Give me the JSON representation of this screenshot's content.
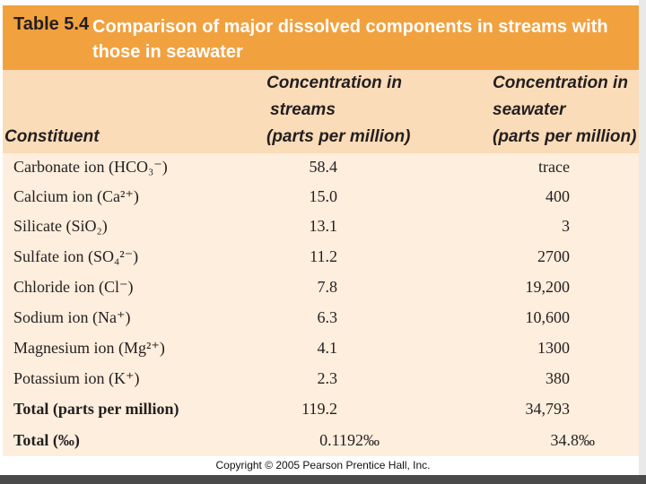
{
  "title": {
    "number": "Table 5.4",
    "text": "Comparison of major dissolved components in streams with those in seawater"
  },
  "colors": {
    "title_bar": "#f2a13f",
    "header_band": "#fbdcb8",
    "body_band": "#fdeedd",
    "bottom_bar": "#4a4a4a"
  },
  "columns": {
    "constituent": "Constituent",
    "streams": [
      "Concentration in",
      "streams",
      "(parts per million)"
    ],
    "seawater": [
      "Concentration in",
      "seawater",
      "(parts per million)"
    ]
  },
  "rows": [
    {
      "name": "Carbonate ion (HCO₃⁻)",
      "streams": "58.4",
      "seawater": "trace",
      "bold": false
    },
    {
      "name": "Calcium ion (Ca²⁺)",
      "streams": "15.0",
      "seawater": "400",
      "bold": false
    },
    {
      "name": "Silicate (SiO₂)",
      "streams": "13.1",
      "seawater": "3",
      "bold": false
    },
    {
      "name": "Sulfate ion (SO₄²⁻)",
      "streams": "11.2",
      "seawater": "2700",
      "bold": false
    },
    {
      "name": "Chloride ion (Cl⁻)",
      "streams": "7.8",
      "seawater": "19,200",
      "bold": false
    },
    {
      "name": "Sodium ion (Na⁺)",
      "streams": "6.3",
      "seawater": "10,600",
      "bold": false
    },
    {
      "name": "Magnesium ion (Mg²⁺)",
      "streams": "4.1",
      "seawater": "1300",
      "bold": false
    },
    {
      "name": "Potassium ion (K⁺)",
      "streams": "2.3",
      "seawater": "380",
      "bold": false
    },
    {
      "name": "Total (parts per million)",
      "streams": "119.2",
      "seawater": "34,793",
      "bold": true
    },
    {
      "name": "Total (‰)",
      "streams": "0.1192‰",
      "seawater": "34.8‰",
      "bold": true
    }
  ],
  "copyright": "Copyright © 2005 Pearson Prentice Hall, Inc."
}
